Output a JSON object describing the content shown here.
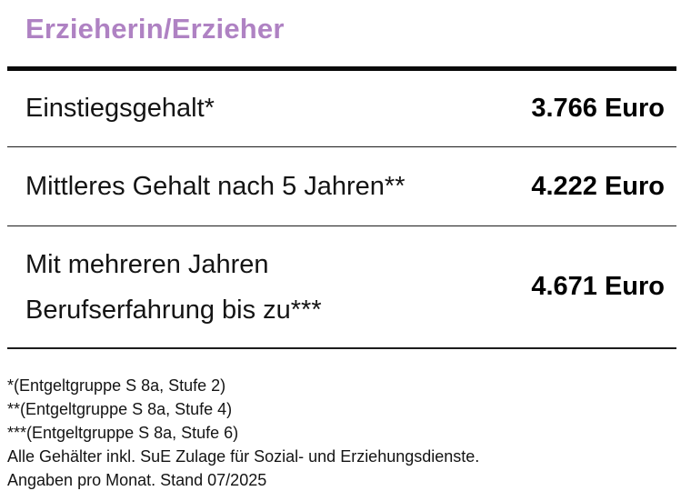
{
  "title": "Erzieherin/Erzieher",
  "theme": {
    "title_color": "#af82c3",
    "text_color": "#141414",
    "value_color": "#000000",
    "rule_color": "#0a0a0a",
    "background": "#ffffff"
  },
  "table": {
    "rows": [
      {
        "label": "Einstiegsgehalt*",
        "value": "3.766 Euro"
      },
      {
        "label": "Mittleres Gehalt nach 5 Jahren**",
        "value": "4.222 Euro"
      },
      {
        "label_lines": [
          "Mit mehreren Jahren",
          "Berufserfahrung bis zu***"
        ],
        "value": "4.671 Euro"
      }
    ]
  },
  "footnotes": [
    "*(Entgeltgruppe S 8a, Stufe 2)",
    "**(Entgeltgruppe S 8a, Stufe 4)",
    "***(Entgeltgruppe S 8a, Stufe 6)",
    "Alle Gehälter inkl. SuE Zulage für Sozial- und Erziehungsdienste.",
    "Angaben pro Monat. Stand 07/2025"
  ]
}
